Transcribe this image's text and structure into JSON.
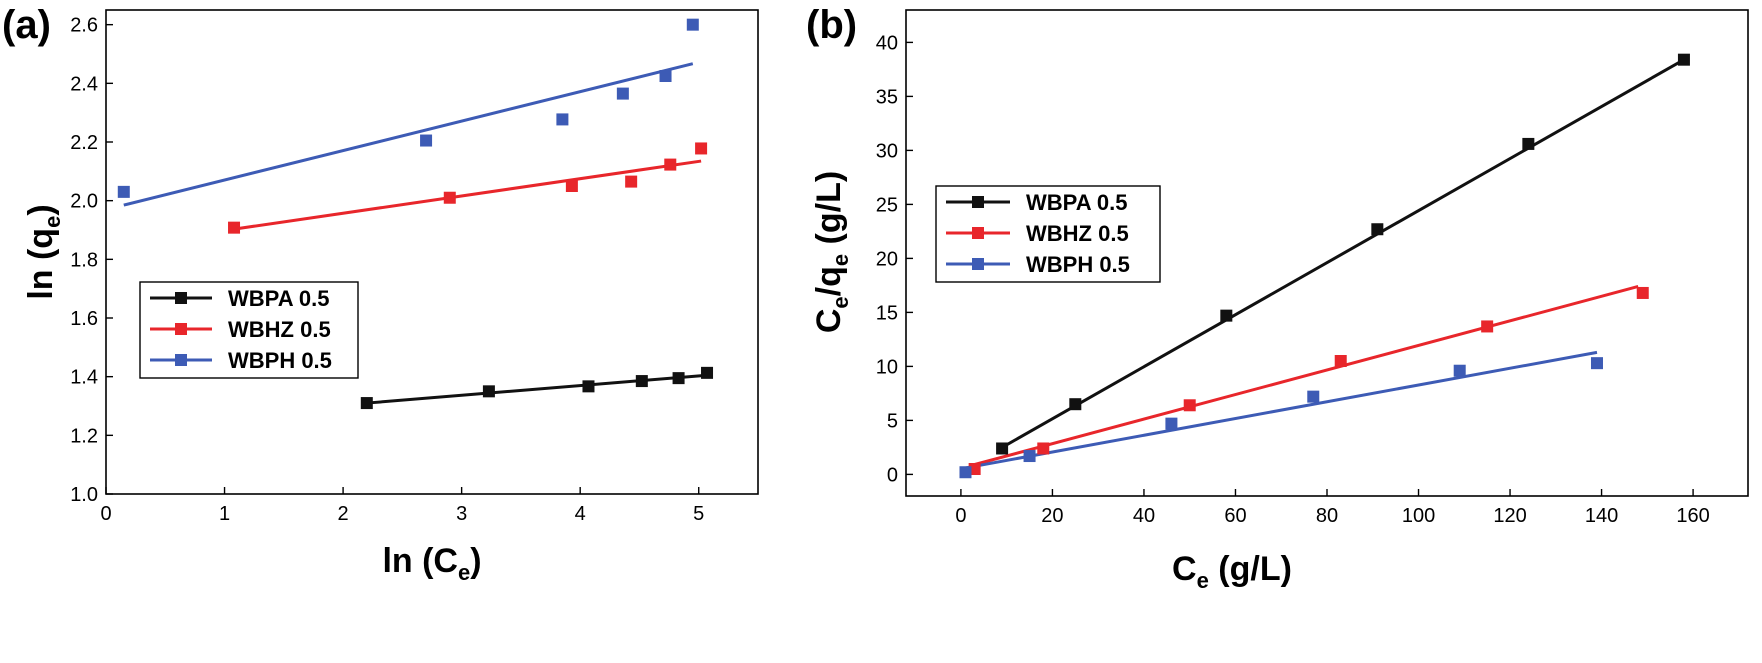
{
  "chart_data": [
    {
      "type": "scatter",
      "panel_label": "(a)",
      "title": "",
      "xlabel": {
        "base": "ln (C",
        "sub": "e",
        "tail": ")"
      },
      "ylabel": {
        "base": "ln (q",
        "sub": "e",
        "tail": ")"
      },
      "xlim": [
        0,
        5.5
      ],
      "ylim": [
        1.0,
        2.65
      ],
      "xticks": [
        "0",
        "1",
        "2",
        "3",
        "4",
        "5"
      ],
      "xtick_values": [
        0,
        1,
        2,
        3,
        4,
        5
      ],
      "yticks": [
        "1.0",
        "1.2",
        "1.4",
        "1.6",
        "1.8",
        "2.0",
        "2.2",
        "2.4",
        "2.6"
      ],
      "ytick_values": [
        1.0,
        1.2,
        1.4,
        1.6,
        1.8,
        2.0,
        2.2,
        2.4,
        2.6
      ],
      "legend_position": "center-left",
      "series": [
        {
          "name": "WBPA 0.5",
          "color": "#111111",
          "x": [
            2.2,
            3.23,
            4.07,
            4.52,
            4.83,
            5.07
          ],
          "y": [
            1.31,
            1.35,
            1.367,
            1.385,
            1.395,
            1.413
          ],
          "fit": [
            [
              2.2,
              1.31
            ],
            [
              5.07,
              1.405
            ]
          ]
        },
        {
          "name": "WBHZ 0.5",
          "color": "#e8262b",
          "x": [
            1.08,
            2.9,
            3.93,
            4.43,
            4.76,
            5.02
          ],
          "y": [
            1.908,
            2.01,
            2.05,
            2.065,
            2.123,
            2.178
          ],
          "fit": [
            [
              1.08,
              1.903
            ],
            [
              5.02,
              2.135
            ]
          ]
        },
        {
          "name": "WBPH 0.5",
          "color": "#3d5bb5",
          "x": [
            0.15,
            2.7,
            3.85,
            4.36,
            4.72,
            4.95
          ],
          "y": [
            2.03,
            2.205,
            2.277,
            2.365,
            2.425,
            2.6
          ],
          "fit": [
            [
              0.15,
              1.985
            ],
            [
              4.95,
              2.467
            ]
          ]
        }
      ]
    },
    {
      "type": "scatter",
      "panel_label": "(b)",
      "title": "",
      "xlabel": {
        "base": "C",
        "sub": "e",
        "tail": " (g/L)"
      },
      "ylabel": {
        "base": "C",
        "sub": "e",
        "mid": "/q",
        "sub2": "e",
        "tail": " (g/L)"
      },
      "xlim": [
        -12,
        172
      ],
      "ylim": [
        -2,
        43
      ],
      "xticks": [
        "0",
        "20",
        "40",
        "60",
        "80",
        "100",
        "120",
        "140",
        "160"
      ],
      "xtick_values": [
        0,
        20,
        40,
        60,
        80,
        100,
        120,
        140,
        160
      ],
      "yticks": [
        "0",
        "5",
        "10",
        "15",
        "20",
        "25",
        "30",
        "35",
        "40"
      ],
      "ytick_values": [
        0,
        5,
        10,
        15,
        20,
        25,
        30,
        35,
        40
      ],
      "legend_position": "upper-left",
      "series": [
        {
          "name": "WBPA 0.5",
          "color": "#111111",
          "x": [
            9,
            25,
            58,
            91,
            124,
            158
          ],
          "y": [
            2.4,
            6.5,
            14.7,
            22.7,
            30.6,
            38.4
          ],
          "fit": [
            [
              9,
              2.5
            ],
            [
              158,
              38.4
            ]
          ]
        },
        {
          "name": "WBHZ 0.5",
          "color": "#e8262b",
          "x": [
            3,
            18,
            50,
            83,
            115,
            149
          ],
          "y": [
            0.5,
            2.4,
            6.4,
            10.5,
            13.7,
            16.8
          ],
          "fit": [
            [
              2,
              0.8
            ],
            [
              148,
              17.4
            ]
          ]
        },
        {
          "name": "WBPH 0.5",
          "color": "#3d5bb5",
          "x": [
            1,
            15,
            46,
            77,
            109,
            139
          ],
          "y": [
            0.2,
            1.7,
            4.7,
            7.2,
            9.6,
            10.3
          ],
          "fit": [
            [
              1,
              0.6
            ],
            [
              139,
              11.3
            ]
          ]
        }
      ]
    }
  ]
}
